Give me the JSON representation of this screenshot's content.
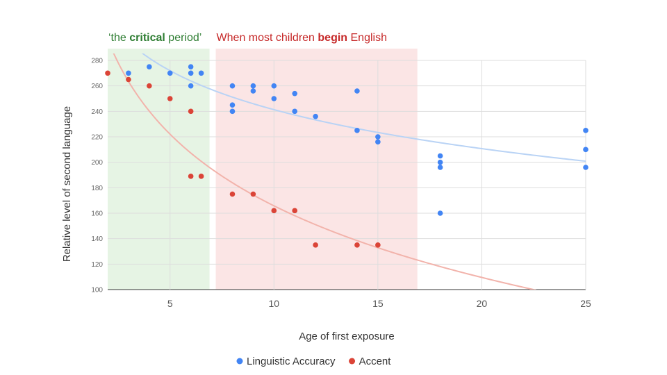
{
  "chart_data": {
    "type": "scatter",
    "title": "",
    "xlabel": "Age of first exposure",
    "ylabel": "Relative level of second language",
    "xlim": [
      2,
      25
    ],
    "ylim": [
      100,
      280
    ],
    "x_ticks": [
      5,
      10,
      15,
      20,
      25
    ],
    "y_ticks": [
      100,
      120,
      140,
      160,
      180,
      200,
      220,
      240,
      260,
      280
    ],
    "grid": true,
    "legend_position": "bottom",
    "regions": [
      {
        "x_range": [
          2,
          6.9
        ],
        "color": "#e6f4e4",
        "label_parts": [
          {
            "text": "‘the ",
            "bold": false
          },
          {
            "text": "critical",
            "bold": true
          },
          {
            "text": " period’",
            "bold": false
          }
        ],
        "label_color": "#2e7d32"
      },
      {
        "x_range": [
          7.2,
          16.9
        ],
        "color": "#fbe5e5",
        "label_parts": [
          {
            "text": "When most children ",
            "bold": false
          },
          {
            "text": "begin",
            "bold": true
          },
          {
            "text": " English",
            "bold": false
          }
        ],
        "label_color": "#c62828"
      }
    ],
    "series": [
      {
        "name": "Linguistic Accuracy",
        "color": "#4285f4",
        "trend_color": "#b9d3f5",
        "points": [
          [
            3,
            270
          ],
          [
            4,
            275
          ],
          [
            5,
            270
          ],
          [
            6,
            275
          ],
          [
            6,
            270
          ],
          [
            6,
            260
          ],
          [
            6.5,
            270
          ],
          [
            8,
            260
          ],
          [
            8,
            245
          ],
          [
            8,
            240
          ],
          [
            9,
            260
          ],
          [
            9,
            256
          ],
          [
            10,
            260
          ],
          [
            10,
            250
          ],
          [
            11,
            254
          ],
          [
            11,
            240
          ],
          [
            12,
            236
          ],
          [
            14,
            256
          ],
          [
            14,
            225
          ],
          [
            15,
            220
          ],
          [
            15,
            216
          ],
          [
            18,
            205
          ],
          [
            18,
            200
          ],
          [
            18,
            196
          ],
          [
            18,
            160
          ],
          [
            25,
            225
          ],
          [
            25,
            210
          ],
          [
            25,
            196
          ]
        ]
      },
      {
        "name": "Accent",
        "color": "#db4437",
        "trend_color": "#f2b3ab",
        "points": [
          [
            2,
            270
          ],
          [
            3,
            265
          ],
          [
            4,
            260
          ],
          [
            5,
            250
          ],
          [
            6,
            240
          ],
          [
            6,
            189
          ],
          [
            6.5,
            189
          ],
          [
            8,
            175
          ],
          [
            9,
            175
          ],
          [
            10,
            162
          ],
          [
            11,
            162
          ],
          [
            12,
            135
          ],
          [
            14,
            135
          ],
          [
            15,
            135
          ]
        ]
      }
    ]
  }
}
